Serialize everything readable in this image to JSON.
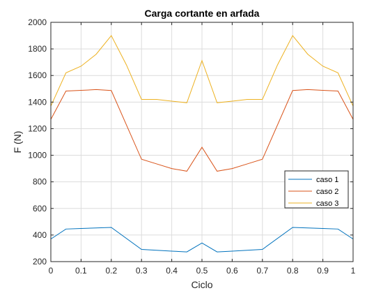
{
  "chart_data": {
    "type": "line",
    "title": "Carga cortante en arfada",
    "xlabel": "Ciclo",
    "ylabel": "F (N)",
    "xlim": [
      0,
      1
    ],
    "ylim": [
      200,
      2000
    ],
    "xticks": [
      0,
      0.1,
      0.2,
      0.3,
      0.4,
      0.5,
      0.6,
      0.7,
      0.8,
      0.9,
      1
    ],
    "xtick_labels": [
      "0",
      "0.1",
      "0.2",
      "0.3",
      "0.4",
      "0.5",
      "0.6",
      "0.7",
      "0.8",
      "0.9",
      "1"
    ],
    "yticks": [
      200,
      400,
      600,
      800,
      1000,
      1200,
      1400,
      1600,
      1800,
      2000
    ],
    "ytick_labels": [
      "200",
      "400",
      "600",
      "800",
      "1000",
      "1200",
      "1400",
      "1600",
      "1800",
      "2000"
    ],
    "grid": true,
    "legend_position": "right",
    "series": [
      {
        "name": "caso 1",
        "color": "#0072BD",
        "x": [
          0,
          0.05,
          0.1,
          0.15,
          0.2,
          0.3,
          0.35,
          0.4,
          0.45,
          0.5,
          0.55,
          0.6,
          0.65,
          0.7,
          0.8,
          0.85,
          0.9,
          0.95,
          1
        ],
        "y": [
          370,
          445,
          449,
          453,
          457,
          292,
          285,
          279,
          273,
          340,
          273,
          279,
          285,
          292,
          457,
          453,
          449,
          445,
          370
        ]
      },
      {
        "name": "caso 2",
        "color": "#D95319",
        "x": [
          0,
          0.05,
          0.1,
          0.15,
          0.2,
          0.3,
          0.35,
          0.4,
          0.45,
          0.5,
          0.55,
          0.6,
          0.65,
          0.7,
          0.8,
          0.85,
          0.9,
          0.95,
          1
        ],
        "y": [
          1270,
          1483,
          1488,
          1494,
          1487,
          970,
          935,
          900,
          880,
          1060,
          880,
          900,
          935,
          970,
          1487,
          1494,
          1488,
          1483,
          1270
        ]
      },
      {
        "name": "caso 3",
        "color": "#EDB120",
        "x": [
          0,
          0.05,
          0.1,
          0.15,
          0.2,
          0.25,
          0.3,
          0.35,
          0.4,
          0.45,
          0.5,
          0.55,
          0.6,
          0.65,
          0.7,
          0.75,
          0.8,
          0.85,
          0.9,
          0.95,
          1
        ],
        "y": [
          1370,
          1620,
          1670,
          1760,
          1900,
          1680,
          1420,
          1420,
          1407,
          1395,
          1712,
          1395,
          1407,
          1420,
          1420,
          1680,
          1900,
          1760,
          1670,
          1620,
          1370
        ]
      }
    ]
  }
}
